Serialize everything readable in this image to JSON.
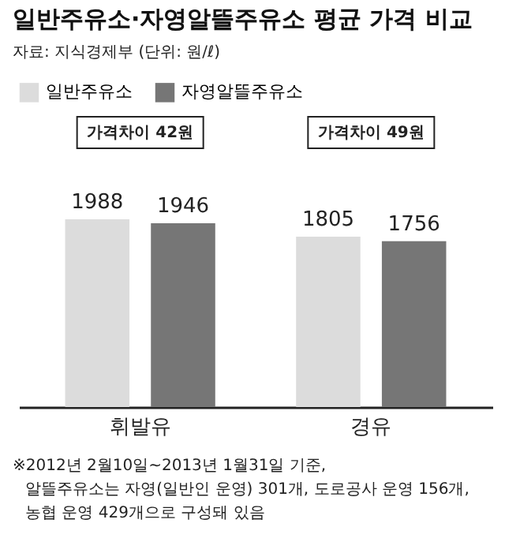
{
  "chart_data": {
    "type": "bar",
    "title": "일반주유소·자영알뜰주유소 평균 가격 비교",
    "subtitle": "자료: 지식경제부 (단위: 원/ℓ)",
    "categories": [
      "휘발유",
      "경유"
    ],
    "series": [
      {
        "name": "일반주유소",
        "color": "#dcdcdc",
        "values": [
          1988,
          1805
        ]
      },
      {
        "name": "자영알뜰주유소",
        "color": "#767676",
        "values": [
          1946,
          1756
        ]
      }
    ],
    "data_labels": true,
    "legend": "top left",
    "grid": false,
    "tick_labels": "x",
    "annotations": [
      "가격차이 42원",
      "가격차이 49원",
      "※2012년 2월10일~2013년 1월31일 기준,",
      "알뜰주유소는 자영(일반인 운영) 301개, 도로공사 운영 156개,",
      "농협 운영 429개으로 구성돼 있음"
    ]
  }
}
